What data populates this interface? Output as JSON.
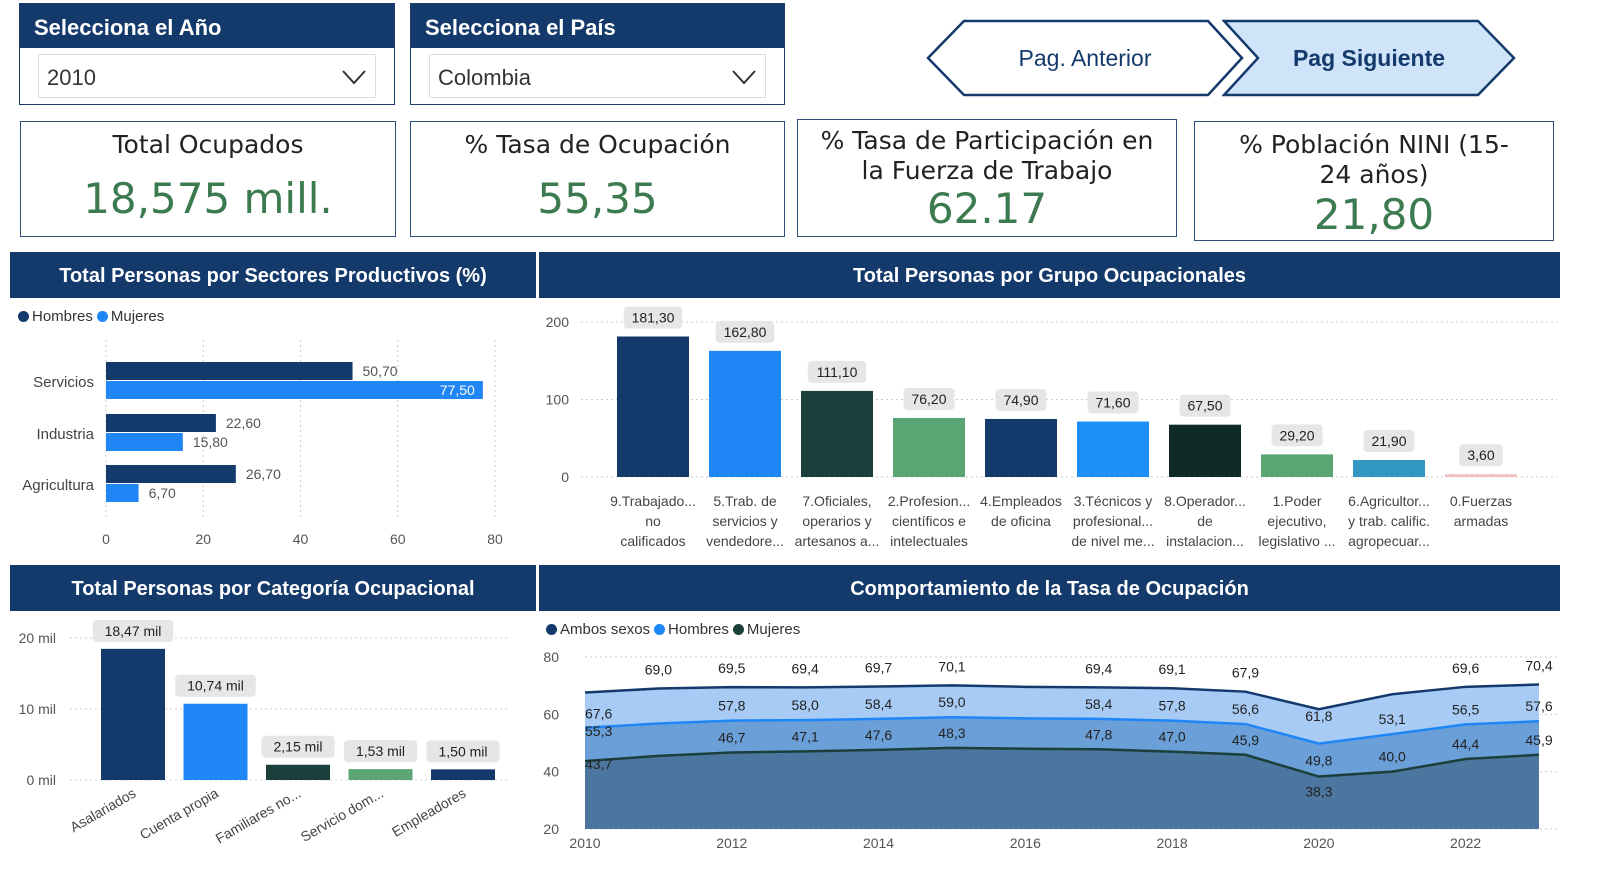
{
  "slicers": {
    "year": {
      "label": "Selecciona el Año",
      "value": "2010"
    },
    "country": {
      "label": "Selecciona el País",
      "value": "Colombia"
    }
  },
  "nav": {
    "prev": "Pag. Anterior",
    "next": "Pag Siguiente"
  },
  "kpis": [
    {
      "title": "Total Ocupados",
      "value": "18,575 mill."
    },
    {
      "title": "% Tasa de Ocupación",
      "value": "55,35"
    },
    {
      "title": "% Tasa de Participación en la Fuerza de Trabajo",
      "value": "62.17"
    },
    {
      "title": "% Población NINI (15-24 años)",
      "value": "21,80"
    }
  ],
  "colors": {
    "navy": "#133a6b",
    "blue": "#1f86f5",
    "darkgreen": "#1b3f3a",
    "green": "#5ba574",
    "nearblack": "#0f2a27",
    "teal": "#3197c2",
    "pink": "#f2c0c0",
    "kpi_green": "#3c7a4f"
  },
  "chart_data": [
    {
      "id": "sectores",
      "type": "bar",
      "orientation": "horizontal",
      "title": "Total Personas por Sectores Productivos (%)",
      "categories": [
        "Servicios",
        "Industria",
        "Agricultura"
      ],
      "series": [
        {
          "name": "Hombres",
          "color": "#133a6b",
          "values": [
            50.7,
            22.6,
            26.7
          ],
          "labels": [
            "50,70",
            "22,60",
            "26,70"
          ]
        },
        {
          "name": "Mujeres",
          "color": "#1f86f5",
          "values": [
            77.5,
            15.8,
            6.7
          ],
          "labels": [
            "77,50",
            "15,80",
            "6,70"
          ]
        }
      ],
      "xlim": [
        0,
        80
      ],
      "ticks": [
        "0",
        "20",
        "40",
        "60",
        "80"
      ],
      "legend": "top-left",
      "grid": true
    },
    {
      "id": "grupos",
      "type": "bar",
      "title": "Total Personas por Grupo Ocupacionales",
      "categories": [
        [
          "9.Trabajado...",
          "no",
          "calificados"
        ],
        [
          "5.Trab. de",
          "servicios y",
          "vendedore..."
        ],
        [
          "7.Oficiales,",
          "operarios y",
          "artesanos a..."
        ],
        [
          "2.Profesion...",
          "científicos e",
          "intelectuales"
        ],
        [
          "4.Empleados",
          "de oficina"
        ],
        [
          "3.Técnicos y",
          "profesional...",
          "de nivel me..."
        ],
        [
          "8.Operador...",
          "de",
          "instalacion..."
        ],
        [
          "1.Poder",
          "ejecutivo,",
          "legislativo ..."
        ],
        [
          "6.Agricultor...",
          "y trab. calific.",
          "agropecuar..."
        ],
        [
          "0.Fuerzas",
          "armadas"
        ]
      ],
      "values": [
        181.3,
        162.8,
        111.1,
        76.2,
        74.9,
        71.6,
        67.5,
        29.2,
        21.9,
        3.6
      ],
      "labels": [
        "181,30",
        "162,80",
        "111,10",
        "76,20",
        "74,90",
        "71,60",
        "67,50",
        "29,20",
        "21,90",
        "3,60"
      ],
      "bar_colors": [
        "#133a6b",
        "#1f86f5",
        "#1b3f3a",
        "#5ba574",
        "#133a6b",
        "#1f8ff8",
        "#0f2a27",
        "#5ba574",
        "#3197c2",
        "#f2c0c0"
      ],
      "ylim": [
        0,
        200
      ],
      "ticks": [
        "0",
        "100",
        "200"
      ],
      "grid": true
    },
    {
      "id": "categoria",
      "type": "bar",
      "title": "Total Personas por Categoría Ocupacional",
      "categories": [
        "Asalariados",
        "Cuenta propia",
        "Familiares no...",
        "Servicio dom...",
        "Empleadores"
      ],
      "values": [
        18.47,
        10.74,
        2.15,
        1.53,
        1.5
      ],
      "labels": [
        "18,47 mil",
        "10,74 mil",
        "2,15 mil",
        "1,53 mil",
        "1,50 mil"
      ],
      "bar_colors": [
        "#133a6b",
        "#1f86f5",
        "#1b3f3a",
        "#5ba574",
        "#133a6b"
      ],
      "ylim": [
        0,
        20
      ],
      "ticks": [
        "0 mil",
        "10 mil",
        "20 mil"
      ],
      "grid": true
    },
    {
      "id": "tasa",
      "type": "area",
      "title": "Comportamiento de la Tasa de Ocupación",
      "x": [
        2010,
        2011,
        2012,
        2013,
        2014,
        2015,
        2016,
        2017,
        2018,
        2019,
        2020,
        2021,
        2022,
        2023
      ],
      "series": [
        {
          "name": "Ambos sexos",
          "color": "#133a6b",
          "values": [
            67.6,
            69.0,
            69.5,
            69.4,
            69.7,
            70.1,
            69.6,
            69.4,
            69.1,
            67.9,
            61.8,
            67.0,
            69.6,
            70.4
          ],
          "labels": [
            "67,6",
            "69,0",
            "69,5",
            "69,4",
            "69,7",
            "70,1",
            "",
            "69,4",
            "69,1",
            "67,9",
            "61,8",
            "",
            "69,6",
            "70,4"
          ]
        },
        {
          "name": "Hombres",
          "color": "#1f86f5",
          "values": [
            55.3,
            56.8,
            57.8,
            58.0,
            58.4,
            59.0,
            58.6,
            58.4,
            57.8,
            56.6,
            49.8,
            53.1,
            56.5,
            57.6
          ],
          "labels": [
            "55,3",
            "",
            "57,8",
            "58,0",
            "58,4",
            "59,0",
            "",
            "58,4",
            "57,8",
            "56,6",
            "49,8",
            "53,1",
            "56,5",
            "57,6"
          ]
        },
        {
          "name": "Mujeres",
          "color": "#1b3f3a",
          "values": [
            43.7,
            45.5,
            46.7,
            47.1,
            47.6,
            48.3,
            48.0,
            47.8,
            47.0,
            45.9,
            38.3,
            40.0,
            44.4,
            45.9
          ],
          "labels": [
            "43,7",
            "",
            "46,7",
            "47,1",
            "47,6",
            "48,3",
            "",
            "47,8",
            "47,0",
            "45,9",
            "38,3",
            "40,0",
            "44,4",
            "45,9"
          ]
        }
      ],
      "xticks": [
        "2010",
        "2012",
        "2014",
        "2016",
        "2018",
        "2020",
        "2022"
      ],
      "ylim": [
        20,
        80
      ],
      "yticks": [
        "20",
        "40",
        "60",
        "80"
      ],
      "legend": "top-left",
      "grid": true
    }
  ]
}
